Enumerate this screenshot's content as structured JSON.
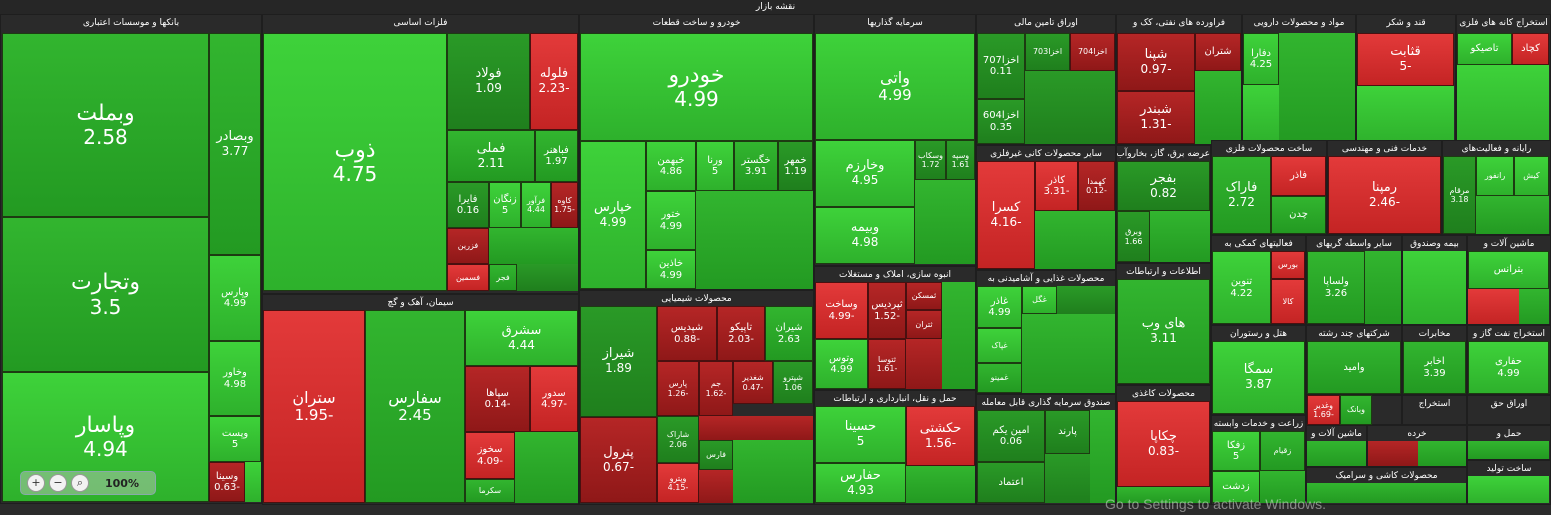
{
  "header": {
    "title": "نقشه بازار"
  },
  "zoom": {
    "level": "100%",
    "zoom_in_icon": "zoom-in-icon",
    "zoom_out_icon": "zoom-out-icon",
    "fit_icon": "magnifier-icon"
  },
  "watermark": "Go to Settings to activate Windows.",
  "sectors": {
    "banks": "بانکها و موسسات اعتباری",
    "metals": "فلزات اساسی",
    "auto": "خودرو و ساخت قطعات",
    "investment": "سرمایه گذاریها",
    "financial": "اوراق تامین مالی",
    "refinery": "فراورده های نفتی، کک و",
    "pharma": "مواد و محصولات دارویی",
    "sugar": "قند و شکر",
    "mining": "استخراج کانه های فلزی",
    "cement": "سیمان، آهک و گچ",
    "chemical": "محصولات شیمیایی",
    "realestate": "انبوه سازی، املاک و مستغلات",
    "transport": "حمل و نقل، انبارداری و ارتباطات",
    "nonmetal": "سایر محصولات کانی غیرفلزی",
    "utility": "عرضه برق، گاز، بخاروآب",
    "metalprod": "ساخت محصولات فلزی",
    "engineering": "خدمات فنی و مهندسی",
    "ict": "اطلاعات و ارتباطات",
    "food": "محصولات غذایی و آشامیدنی به",
    "fund": "صندوق سرمایه گذاری قابل معامله",
    "paper": "محصولات کاغذی",
    "hotel": "هتل و رستوران",
    "multi": "شرکتهای چند رشته",
    "telecom": "مخابرات",
    "oilgas": "استخراج نفت گاز و",
    "rubber": "لاستیک و",
    "retail": "خرده",
    "agri": "زراعت و خدمات وابسته",
    "machinery": "ماشین آلات و",
    "textile": "محصولات کاشی و سرامیک",
    "rights": "اوراق حق",
    "extraction": "استخراج",
    "support": "فعالیتهای کمکی به",
    "brokers": "سایر واسطه گریهای",
    "insurance": "بیمه وصندوق",
    "machines2": "ماشین آلات و",
    "compute": "رایانه و فعالیت‌های",
    "products": "ساخت تولید",
    "transport2": "حمل و"
  },
  "tiles": [
    {
      "name": "وبملت",
      "value": "2.58",
      "tone": "g2"
    },
    {
      "name": "وتجارت",
      "value": "3.5",
      "tone": "g2"
    },
    {
      "name": "وپاسار",
      "value": "4.94",
      "tone": "g1"
    },
    {
      "name": "وبصادر",
      "value": "3.77",
      "tone": "g2"
    },
    {
      "name": "وپارس",
      "value": "4.99",
      "tone": "g1"
    },
    {
      "name": "وخاور",
      "value": "4.98",
      "tone": "g1"
    },
    {
      "name": "وپست",
      "value": "5",
      "tone": "g1"
    },
    {
      "name": "وسینا",
      "value": "-0.63",
      "tone": "r2"
    },
    {
      "name": "ذوب",
      "value": "4.75",
      "tone": "g1"
    },
    {
      "name": "فولاد",
      "value": "1.09",
      "tone": "g3"
    },
    {
      "name": "فلوله",
      "value": "-2.23",
      "tone": "r1"
    },
    {
      "name": "فملی",
      "value": "2.11",
      "tone": "g2"
    },
    {
      "name": "فباهنر",
      "value": "1.97",
      "tone": "g2"
    },
    {
      "name": "فایرا",
      "value": "0.16",
      "tone": "g3"
    },
    {
      "name": "زنگان",
      "value": "5",
      "tone": "g1"
    },
    {
      "name": "فرآور",
      "value": "4.44",
      "tone": "g1"
    },
    {
      "name": "کاوه",
      "value": "-1.75",
      "tone": "r2"
    },
    {
      "name": "فزرین",
      "value": "",
      "tone": "r2"
    },
    {
      "name": "فجر",
      "value": "",
      "tone": "g2"
    },
    {
      "name": "فسمین",
      "value": "",
      "tone": "r1"
    },
    {
      "name": "خودرو",
      "value": "4.99",
      "tone": "g1"
    },
    {
      "name": "خپارس",
      "value": "4.99",
      "tone": "g1"
    },
    {
      "name": "خبهمن",
      "value": "4.86",
      "tone": "g1"
    },
    {
      "name": "ورنا",
      "value": "5",
      "tone": "g1"
    },
    {
      "name": "خگستر",
      "value": "3.91",
      "tone": "g2"
    },
    {
      "name": "خمهر",
      "value": "1.19",
      "tone": "g3"
    },
    {
      "name": "ختور",
      "value": "4.99",
      "tone": "g1"
    },
    {
      "name": "خاذین",
      "value": "4.99",
      "tone": "g1"
    },
    {
      "name": "واتی",
      "value": "4.99",
      "tone": "g1"
    },
    {
      "name": "وخارزم",
      "value": "4.95",
      "tone": "g1"
    },
    {
      "name": "وبیمه",
      "value": "4.98",
      "tone": "g1"
    },
    {
      "name": "وسکاب",
      "value": "1.72",
      "tone": "g3"
    },
    {
      "name": "وسپه",
      "value": "1.61",
      "tone": "g3"
    },
    {
      "name": "اخزا707",
      "value": "0.11",
      "tone": "g3"
    },
    {
      "name": "اخزا604",
      "value": "0.35",
      "tone": "g3"
    },
    {
      "name": "اخزا703",
      "value": "",
      "tone": "g3"
    },
    {
      "name": "اخزا704",
      "value": "",
      "tone": "r2"
    },
    {
      "name": "شپنا",
      "value": "-0.97",
      "tone": "r2"
    },
    {
      "name": "شبندر",
      "value": "-1.31",
      "tone": "r2"
    },
    {
      "name": "شتران",
      "value": "",
      "tone": "r2"
    },
    {
      "name": "دفارا",
      "value": "4.25",
      "tone": "g1"
    },
    {
      "name": "قثابت",
      "value": "-5",
      "tone": "r1"
    },
    {
      "name": "کچاد",
      "value": "",
      "tone": "r1"
    },
    {
      "name": "تاصیکو",
      "value": "",
      "tone": "g1"
    },
    {
      "name": "ستران",
      "value": "-1.95",
      "tone": "r1"
    },
    {
      "name": "سفارس",
      "value": "2.45",
      "tone": "g2"
    },
    {
      "name": "سشرق",
      "value": "4.44",
      "tone": "g1"
    },
    {
      "name": "سپاها",
      "value": "-0.14",
      "tone": "r2"
    },
    {
      "name": "سدور",
      "value": "-4.97",
      "tone": "r1"
    },
    {
      "name": "سخوز",
      "value": "-4.09",
      "tone": "r1"
    },
    {
      "name": "سکرما",
      "value": "",
      "tone": "g2"
    },
    {
      "name": "شیراز",
      "value": "1.89",
      "tone": "g3"
    },
    {
      "name": "پترول",
      "value": "-0.67",
      "tone": "r2"
    },
    {
      "name": "شپدیس",
      "value": "-0.88",
      "tone": "r2"
    },
    {
      "name": "تاپیکو",
      "value": "-2.03",
      "tone": "r2"
    },
    {
      "name": "شیران",
      "value": "2.63",
      "tone": "g2"
    },
    {
      "name": "پارس",
      "value": "-1.26",
      "tone": "r2"
    },
    {
      "name": "جم",
      "value": "-1.62",
      "tone": "r2"
    },
    {
      "name": "شغدیر",
      "value": "-0.47",
      "tone": "r2"
    },
    {
      "name": "شپترو",
      "value": "1.06",
      "tone": "g3"
    },
    {
      "name": "شاراک",
      "value": "2.06",
      "tone": "g3"
    },
    {
      "name": "وپترو",
      "value": "-4.15",
      "tone": "r1"
    },
    {
      "name": "فارس",
      "value": "",
      "tone": "g3"
    },
    {
      "name": "وساخت",
      "value": "-4.99",
      "tone": "r1"
    },
    {
      "name": "ثپردیس",
      "value": "-1.52",
      "tone": "r2"
    },
    {
      "name": "ثمسکن",
      "value": "",
      "tone": "r2"
    },
    {
      "name": "وتوس",
      "value": "4.99",
      "tone": "g1"
    },
    {
      "name": "ثتوسا",
      "value": "-1.61",
      "tone": "r2"
    },
    {
      "name": "ثتران",
      "value": "",
      "tone": "r2"
    },
    {
      "name": "حسینا",
      "value": "5",
      "tone": "g1"
    },
    {
      "name": "حفارس",
      "value": "4.93",
      "tone": "g1"
    },
    {
      "name": "حکشتی",
      "value": "-1.56",
      "tone": "r1"
    },
    {
      "name": "کسرا",
      "value": "-4.16",
      "tone": "r1"
    },
    {
      "name": "کاذر",
      "value": "-3.31",
      "tone": "r1"
    },
    {
      "name": "کهمدا",
      "value": "-0.12",
      "tone": "r2"
    },
    {
      "name": "بفجر",
      "value": "0.82",
      "tone": "g3"
    },
    {
      "name": "وبرق",
      "value": "1.66",
      "tone": "g3"
    },
    {
      "name": "فاراک",
      "value": "2.72",
      "tone": "g2"
    },
    {
      "name": "فاذر",
      "value": "",
      "tone": "r1"
    },
    {
      "name": "چدن",
      "value": "",
      "tone": "g2"
    },
    {
      "name": "رمپنا",
      "value": "-2.46",
      "tone": "r1"
    },
    {
      "name": "کیش",
      "value": "",
      "tone": "g1"
    },
    {
      "name": "مرقام",
      "value": "3.18",
      "tone": "g2"
    },
    {
      "name": "رانفور",
      "value": "",
      "tone": "g1"
    },
    {
      "name": "های وب",
      "value": "3.11",
      "tone": "g2"
    },
    {
      "name": "غاذر",
      "value": "4.99",
      "tone": "g1"
    },
    {
      "name": "غگل",
      "value": "",
      "tone": "g1"
    },
    {
      "name": "غپاک",
      "value": "",
      "tone": "g1"
    },
    {
      "name": "غمینو",
      "value": "",
      "tone": "g2"
    },
    {
      "name": "امین یکم",
      "value": "0.06",
      "tone": "g3"
    },
    {
      "name": "پارند",
      "value": "",
      "tone": "g3"
    },
    {
      "name": "اعتماد",
      "value": "",
      "tone": "g3"
    },
    {
      "name": "چکاپا",
      "value": "-0.83",
      "tone": "r1"
    },
    {
      "name": "تنوین",
      "value": "4.22",
      "tone": "g1"
    },
    {
      "name": "بورس",
      "value": "",
      "tone": "r1"
    },
    {
      "name": "کالا",
      "value": "",
      "tone": "r1"
    },
    {
      "name": "ولساپا",
      "value": "3.26",
      "tone": "g2"
    },
    {
      "name": "بترانس",
      "value": "",
      "tone": "g1"
    },
    {
      "name": "سمگا",
      "value": "3.87",
      "tone": "g1"
    },
    {
      "name": "وامید",
      "value": "",
      "tone": "g2"
    },
    {
      "name": "اخابر",
      "value": "3.39",
      "tone": "g2"
    },
    {
      "name": "حفاری",
      "value": "4.99",
      "tone": "g1"
    },
    {
      "name": "زفکا",
      "value": "5",
      "tone": "g1"
    },
    {
      "name": "زقیام",
      "value": "",
      "tone": "g2"
    },
    {
      "name": "زدشت",
      "value": "",
      "tone": "g1"
    },
    {
      "name": "وبانک",
      "value": "",
      "tone": "g2"
    },
    {
      "name": "وغدیر",
      "value": "-1.69",
      "tone": "r1"
    }
  ]
}
